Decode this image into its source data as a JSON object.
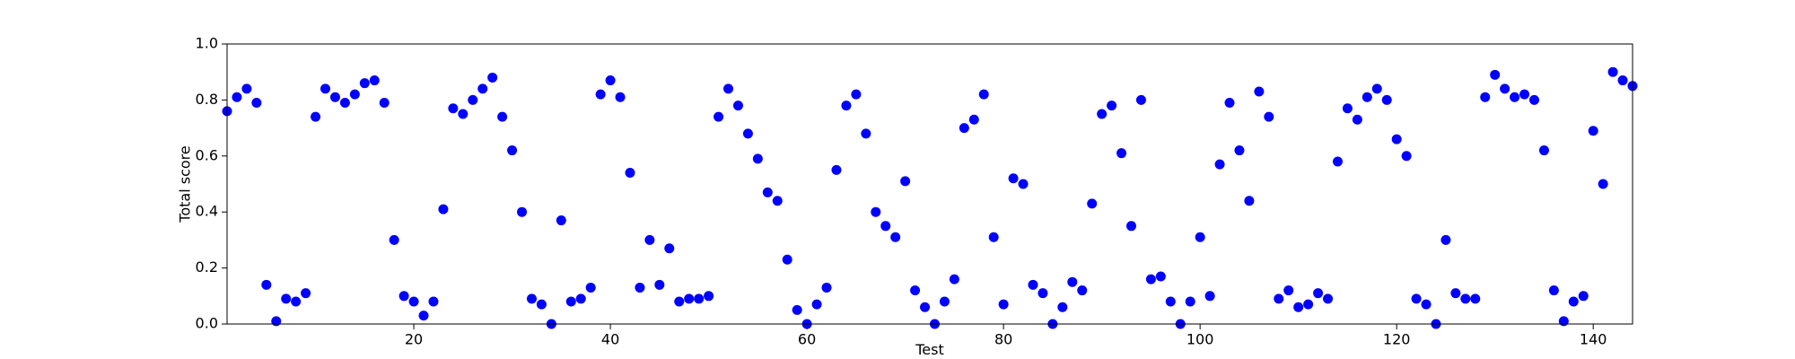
{
  "chart_data": {
    "type": "scatter",
    "x_label": "Test",
    "y_label": "Total score",
    "x": [
      1,
      2,
      3,
      4,
      5,
      6,
      7,
      8,
      9,
      10,
      11,
      12,
      13,
      14,
      15,
      16,
      17,
      18,
      19,
      20,
      21,
      22,
      23,
      24,
      25,
      26,
      27,
      28,
      29,
      30,
      31,
      32,
      33,
      34,
      35,
      36,
      37,
      38,
      39,
      40,
      41,
      42,
      43,
      44,
      45,
      46,
      47,
      48,
      49,
      50,
      51,
      52,
      53,
      54,
      55,
      56,
      57,
      58,
      59,
      60,
      61,
      62,
      63,
      64,
      65,
      66,
      67,
      68,
      69,
      70,
      71,
      72,
      73,
      74,
      75,
      76,
      77,
      78,
      79,
      80,
      81,
      82,
      83,
      84,
      85,
      86,
      87,
      88,
      89,
      90,
      91,
      92,
      93,
      94,
      95,
      96,
      97,
      98,
      99,
      100,
      101,
      102,
      103,
      104,
      105,
      106,
      107,
      108,
      109,
      110,
      111,
      112,
      113,
      114,
      115,
      116,
      117,
      118,
      119,
      120,
      121,
      122,
      123,
      124,
      125,
      126,
      127,
      128,
      129,
      130,
      131,
      132,
      133,
      134,
      135,
      136,
      137,
      138,
      139,
      140,
      141,
      142,
      143,
      144
    ],
    "values": [
      0.76,
      0.81,
      0.84,
      0.79,
      0.14,
      0.01,
      0.09,
      0.08,
      0.11,
      0.74,
      0.84,
      0.81,
      0.79,
      0.82,
      0.86,
      0.87,
      0.79,
      0.3,
      0.1,
      0.08,
      0.03,
      0.08,
      0.41,
      0.77,
      0.75,
      0.8,
      0.84,
      0.88,
      0.74,
      0.62,
      0.4,
      0.09,
      0.07,
      0.0,
      0.37,
      0.08,
      0.09,
      0.13,
      0.82,
      0.87,
      0.81,
      0.54,
      0.13,
      0.3,
      0.14,
      0.27,
      0.08,
      0.09,
      0.09,
      0.1,
      0.74,
      0.84,
      0.78,
      0.68,
      0.59,
      0.47,
      0.44,
      0.23,
      0.05,
      0.0,
      0.07,
      0.13,
      0.55,
      0.78,
      0.82,
      0.68,
      0.4,
      0.35,
      0.31,
      0.51,
      0.12,
      0.06,
      0.0,
      0.08,
      0.16,
      0.7,
      0.73,
      0.82,
      0.31,
      0.07,
      0.52,
      0.5,
      0.14,
      0.11,
      0.0,
      0.06,
      0.15,
      0.12,
      0.43,
      0.75,
      0.78,
      0.61,
      0.35,
      0.8,
      0.16,
      0.17,
      0.08,
      0.0,
      0.08,
      0.31,
      0.1,
      0.57,
      0.79,
      0.62,
      0.44,
      0.83,
      0.74,
      0.09,
      0.12,
      0.06,
      0.07,
      0.11,
      0.09,
      0.58,
      0.77,
      0.73,
      0.81,
      0.84,
      0.8,
      0.66,
      0.6,
      0.09,
      0.07,
      0.0,
      0.3,
      0.11,
      0.09,
      0.09,
      0.81,
      0.89,
      0.84,
      0.81,
      0.82,
      0.8,
      0.62,
      0.12,
      0.01,
      0.08,
      0.1,
      0.69,
      0.5,
      0.9,
      0.87,
      0.85
    ],
    "color": "#0000ff",
    "xlim": [
      1,
      144
    ],
    "xticks": [
      20,
      40,
      60,
      80,
      100,
      120,
      140
    ],
    "ylim": [
      0,
      1
    ],
    "yticks": [
      {
        "value": 0,
        "label": "0.0"
      },
      0.2,
      0.4,
      0.6,
      0.8,
      {
        "value": 1,
        "label": "1.0"
      }
    ],
    "grid": false
  }
}
